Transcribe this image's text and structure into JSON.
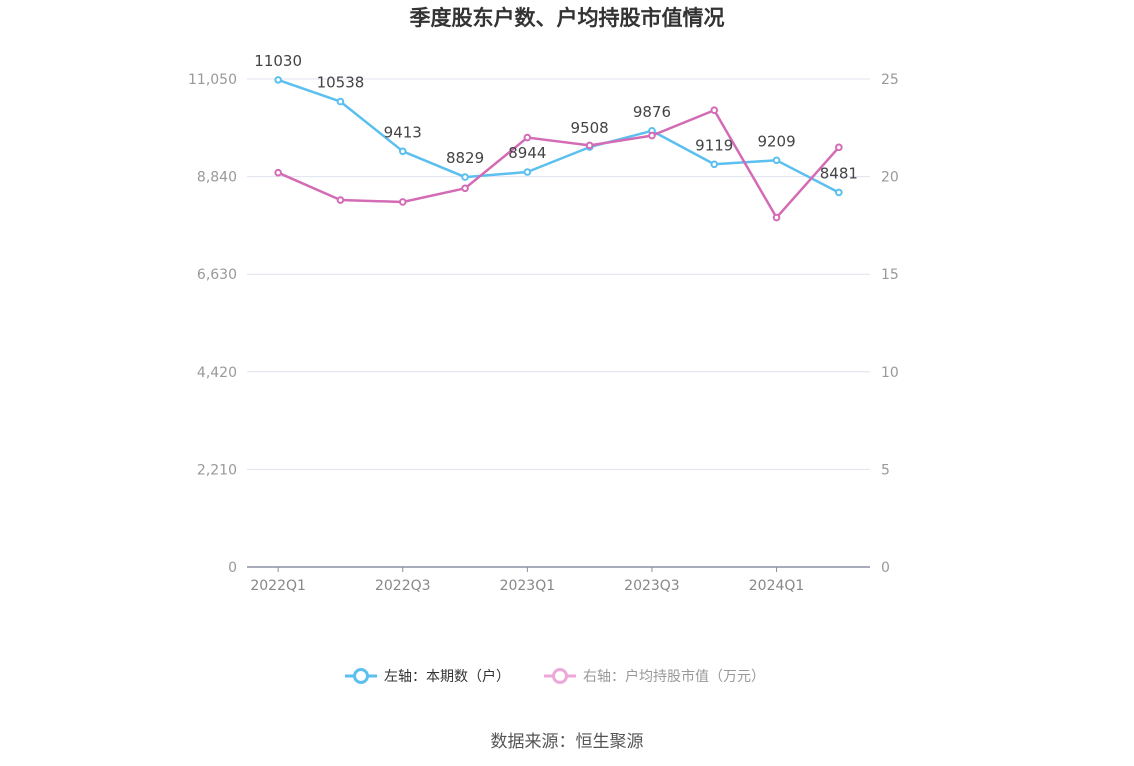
{
  "chart_data": {
    "type": "line",
    "title": "季度股东户数、户均持股市值情况",
    "categories": [
      "2022Q1",
      "2022Q2",
      "2022Q3",
      "2022Q4",
      "2023Q1",
      "2023Q2",
      "2023Q3",
      "2023Q4",
      "2024Q1",
      "2024Q2"
    ],
    "x_tick_labels": [
      "2022Q1",
      "2022Q3",
      "2023Q1",
      "2023Q3",
      "2024Q1"
    ],
    "y_left": {
      "ticks": [
        "0",
        "2,210",
        "4,420",
        "6,630",
        "8,840",
        "11,050"
      ],
      "range": [
        0,
        11050
      ]
    },
    "y_right": {
      "ticks": [
        "0",
        "5",
        "10",
        "15",
        "20",
        "25"
      ],
      "range": [
        0,
        25
      ]
    },
    "series": [
      {
        "name": "左轴：本期数（户）",
        "axis": "left",
        "color": "#5bbfef",
        "values": [
          11030,
          10538,
          9413,
          8829,
          8944,
          9508,
          9876,
          9119,
          9209,
          8481
        ],
        "labels": [
          "11030",
          "10538",
          "9413",
          "8829",
          "8944",
          "9508",
          "9876",
          "9119",
          "9209",
          "8481"
        ]
      },
      {
        "name": "右轴：户均持股市值（万元）",
        "axis": "right",
        "color": "#d36bb5",
        "values": [
          20.2,
          18.8,
          18.7,
          19.4,
          22.0,
          21.6,
          22.1,
          23.4,
          17.9,
          21.5
        ]
      }
    ],
    "grid": true,
    "legend": "bottom-center"
  },
  "legend": {
    "left_label": "左轴：本期数（户）",
    "right_label": "右轴：户均持股市值（万元）",
    "left_color": "#5bbfef",
    "right_color": "#efa7d8"
  },
  "source": "数据来源：恒生聚源"
}
